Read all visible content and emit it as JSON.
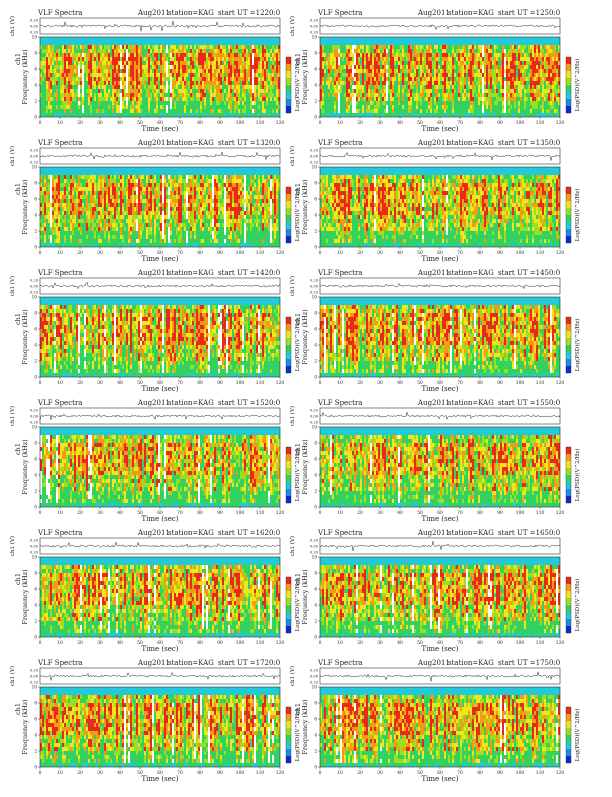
{
  "chart_data": {
    "type": "heatmap",
    "common": {
      "title": "VLF Spectra",
      "date": "Aug2011",
      "station": "station=KAG",
      "xlabel": "Time (sec)",
      "xlim": [
        0,
        120
      ],
      "xticks": [
        0,
        10,
        20,
        30,
        40,
        50,
        60,
        70,
        80,
        90,
        100,
        110,
        120
      ],
      "ylabel_top": "ch1 (V)",
      "ylim_top": [
        -0.2,
        0.2
      ],
      "yticks_top": [
        "0.20",
        "0.00",
        "0.20"
      ],
      "ylabel_spec": "Frequency (kHz)",
      "ylabel_spec_prefix": "ch1",
      "ylim_spec": [
        0,
        10
      ],
      "yticks_spec": [
        0,
        2,
        4,
        6,
        8,
        10
      ],
      "colorbar_label": "Log(PSD)(V^2/Hz)",
      "colormap": [
        "#0a2bd1",
        "#1f8ae6",
        "#22c9d8",
        "#33d160",
        "#9be01e",
        "#f2e51c",
        "#f59a14",
        "#e82a1a"
      ]
    },
    "panels": [
      {
        "ut": "start  UT =1220:0",
        "variant": 1
      },
      {
        "ut": "start  UT =1250:0",
        "variant": 2
      },
      {
        "ut": "start  UT =1320:0",
        "variant": 3
      },
      {
        "ut": "start  UT =1350:0",
        "variant": 4
      },
      {
        "ut": "start  UT =1420:0",
        "variant": 5
      },
      {
        "ut": "start  UT =1450:0",
        "variant": 6
      },
      {
        "ut": "start  UT =1520:0",
        "variant": 7
      },
      {
        "ut": "start  UT =1550:0",
        "variant": 8
      },
      {
        "ut": "start  UT =1620:0",
        "variant": 9
      },
      {
        "ut": "start  UT =1650:0",
        "variant": 10
      },
      {
        "ut": "start  UT =1720:0",
        "variant": 11
      },
      {
        "ut": "start  UT =1750:0",
        "variant": 12
      }
    ]
  }
}
